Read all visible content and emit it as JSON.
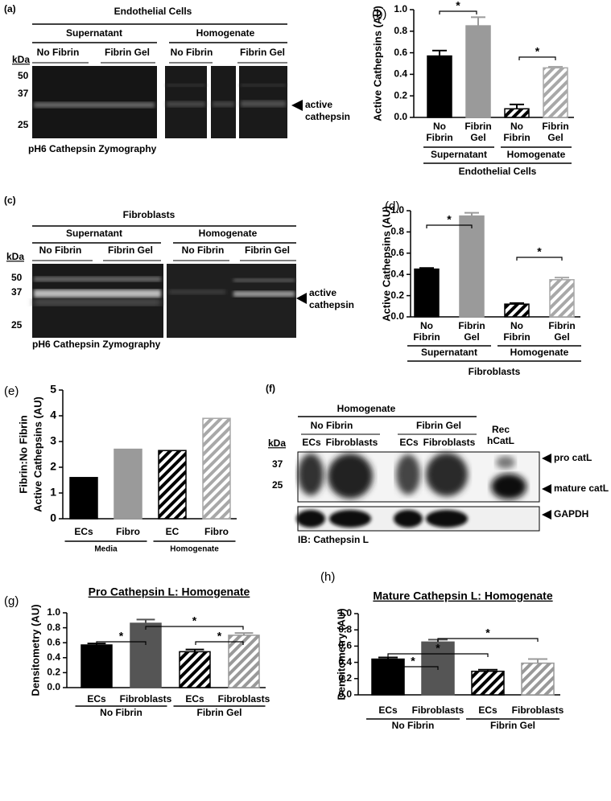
{
  "blots": [
    {
      "panel": "(a)",
      "title": "Endothelial Cells",
      "groups": [
        "Supernatant",
        "Homogenate"
      ],
      "conditions": [
        "No Fibrin",
        "Fibrin Gel",
        "No Fibrin",
        "Fibrin Gel"
      ],
      "kda_label": "kDa",
      "markers": [
        50,
        37,
        25
      ],
      "band_label": "active cathepsin",
      "caption": "pH6 Cathepsin Zymography"
    },
    {
      "panel": "(c)",
      "title": "Fibroblasts",
      "groups": [
        "Supernatant",
        "Homogenate"
      ],
      "conditions": [
        "No Fibrin",
        "Fibrin Gel",
        "No Fibrin",
        "Fibrin Gel"
      ],
      "kda_label": "kDa",
      "markers": [
        50,
        37,
        25
      ],
      "band_label": "active cathepsin",
      "caption": "pH6 Cathepsin Zymography"
    },
    {
      "panel": "(f)",
      "title": "Homogenate",
      "groups": [
        "No Fibrin",
        "Fibrin Gel"
      ],
      "lanes": [
        "ECs",
        "Fibroblasts",
        "ECs",
        "Fibroblasts"
      ],
      "standard": "Rec hCatL",
      "kda_label": "kDa",
      "markers": [
        37,
        25
      ],
      "band_labels": [
        "pro catL",
        "mature catL",
        "GAPDH"
      ],
      "caption": "IB: Cathepsin L"
    }
  ],
  "chart_data": [
    {
      "type": "bar",
      "panel": "(b)",
      "ylabel": "Active Cathepsins (AU)",
      "categories": [
        "No Fibrin",
        "Fibrin Gel",
        "No Fibrin",
        "Fibrin Gel"
      ],
      "values": [
        0.57,
        0.85,
        0.08,
        0.46
      ],
      "errors": [
        0.05,
        0.08,
        0.04,
        0.01
      ],
      "colors": [
        "#000000",
        "#9a9a9a",
        "#000000",
        "#a8a8a8"
      ],
      "hatched": [
        false,
        false,
        true,
        true
      ],
      "groups": [
        "Supernatant",
        "Homogenate"
      ],
      "group_title": "Endothelial Cells",
      "annotations": [
        "*",
        "*"
      ],
      "ylim": [
        0,
        1
      ],
      "yticks": [
        {
          "value": 0,
          "label": "0.0"
        },
        0.2,
        0.4,
        0.6,
        0.8,
        {
          "value": 1,
          "label": "1.0"
        }
      ]
    },
    {
      "type": "bar",
      "panel": "(d)",
      "ylabel": "Active Cathepsins (AU)",
      "categories": [
        "No Fibrin",
        "Fibrin Gel",
        "No Fibrin",
        "Fibrin Gel"
      ],
      "values": [
        0.45,
        0.95,
        0.12,
        0.35
      ],
      "errors": [
        0.01,
        0.03,
        0.01,
        0.02
      ],
      "colors": [
        "#000000",
        "#9a9a9a",
        "#000000",
        "#a8a8a8"
      ],
      "hatched": [
        false,
        false,
        true,
        true
      ],
      "groups": [
        "Supernatant",
        "Homogenate"
      ],
      "group_title": "Fibroblasts",
      "annotations": [
        "*",
        "*"
      ],
      "ylim": [
        0,
        1
      ],
      "yticks": [
        {
          "value": 0,
          "label": "0.0"
        },
        0.2,
        0.4,
        0.6,
        0.8,
        {
          "value": 1,
          "label": "1.0"
        }
      ]
    },
    {
      "type": "bar",
      "panel": "(e)",
      "ylabel": [
        "Fibrin:No Fibrin",
        "Active Cathepsins (AU)"
      ],
      "categories": [
        "ECs",
        "Fibro",
        "EC",
        "Fibro"
      ],
      "values": [
        1.6,
        2.7,
        2.65,
        3.9
      ],
      "colors": [
        "#000000",
        "#9a9a9a",
        "#000000",
        "#a8a8a8"
      ],
      "hatched": [
        false,
        false,
        true,
        true
      ],
      "groups": [
        "Media",
        "Homogenate"
      ],
      "ylim": [
        0,
        5
      ],
      "yticks": [
        0,
        1,
        2,
        3,
        4,
        5
      ]
    },
    {
      "type": "bar",
      "panel": "(g)",
      "title": "Pro Cathepsin L: Homogenate",
      "ylabel": "Densitometry (AU)",
      "categories": [
        "ECs",
        "Fibroblasts",
        "ECs",
        "Fibroblasts"
      ],
      "values": [
        0.57,
        0.86,
        0.48,
        0.7
      ],
      "errors": [
        0.02,
        0.05,
        0.03,
        0.03
      ],
      "colors": [
        "#000000",
        "#555555",
        "#000000",
        "#999999"
      ],
      "hatched": [
        false,
        false,
        true,
        true
      ],
      "groups": [
        "No Fibrin",
        "Fibrin Gel"
      ],
      "annotations": [
        "*",
        "*",
        "*"
      ],
      "ylim": [
        0,
        1
      ],
      "yticks": [
        {
          "value": 0,
          "label": "0.0"
        },
        0.2,
        0.4,
        0.6,
        0.8,
        {
          "value": 1,
          "label": "1.0"
        }
      ]
    },
    {
      "type": "bar",
      "panel": "(h)",
      "title": "Mature Cathepsin L: Homogenate",
      "ylabel": "Densitometry (AU)",
      "categories": [
        "ECs",
        "Fibroblasts",
        "ECs",
        "Fibroblasts"
      ],
      "values": [
        0.44,
        0.65,
        0.29,
        0.39
      ],
      "errors": [
        0.02,
        0.03,
        0.02,
        0.05
      ],
      "colors": [
        "#000000",
        "#555555",
        "#000000",
        "#999999"
      ],
      "hatched": [
        false,
        false,
        true,
        true
      ],
      "groups": [
        "No Fibrin",
        "Fibrin Gel"
      ],
      "annotations": [
        "*",
        "*",
        "*"
      ],
      "ylim": [
        0,
        1
      ],
      "yticks": [
        {
          "value": 0,
          "label": "0.0"
        },
        0.2,
        0.4,
        0.6,
        0.8,
        {
          "value": 1,
          "label": "1.0"
        }
      ]
    }
  ]
}
